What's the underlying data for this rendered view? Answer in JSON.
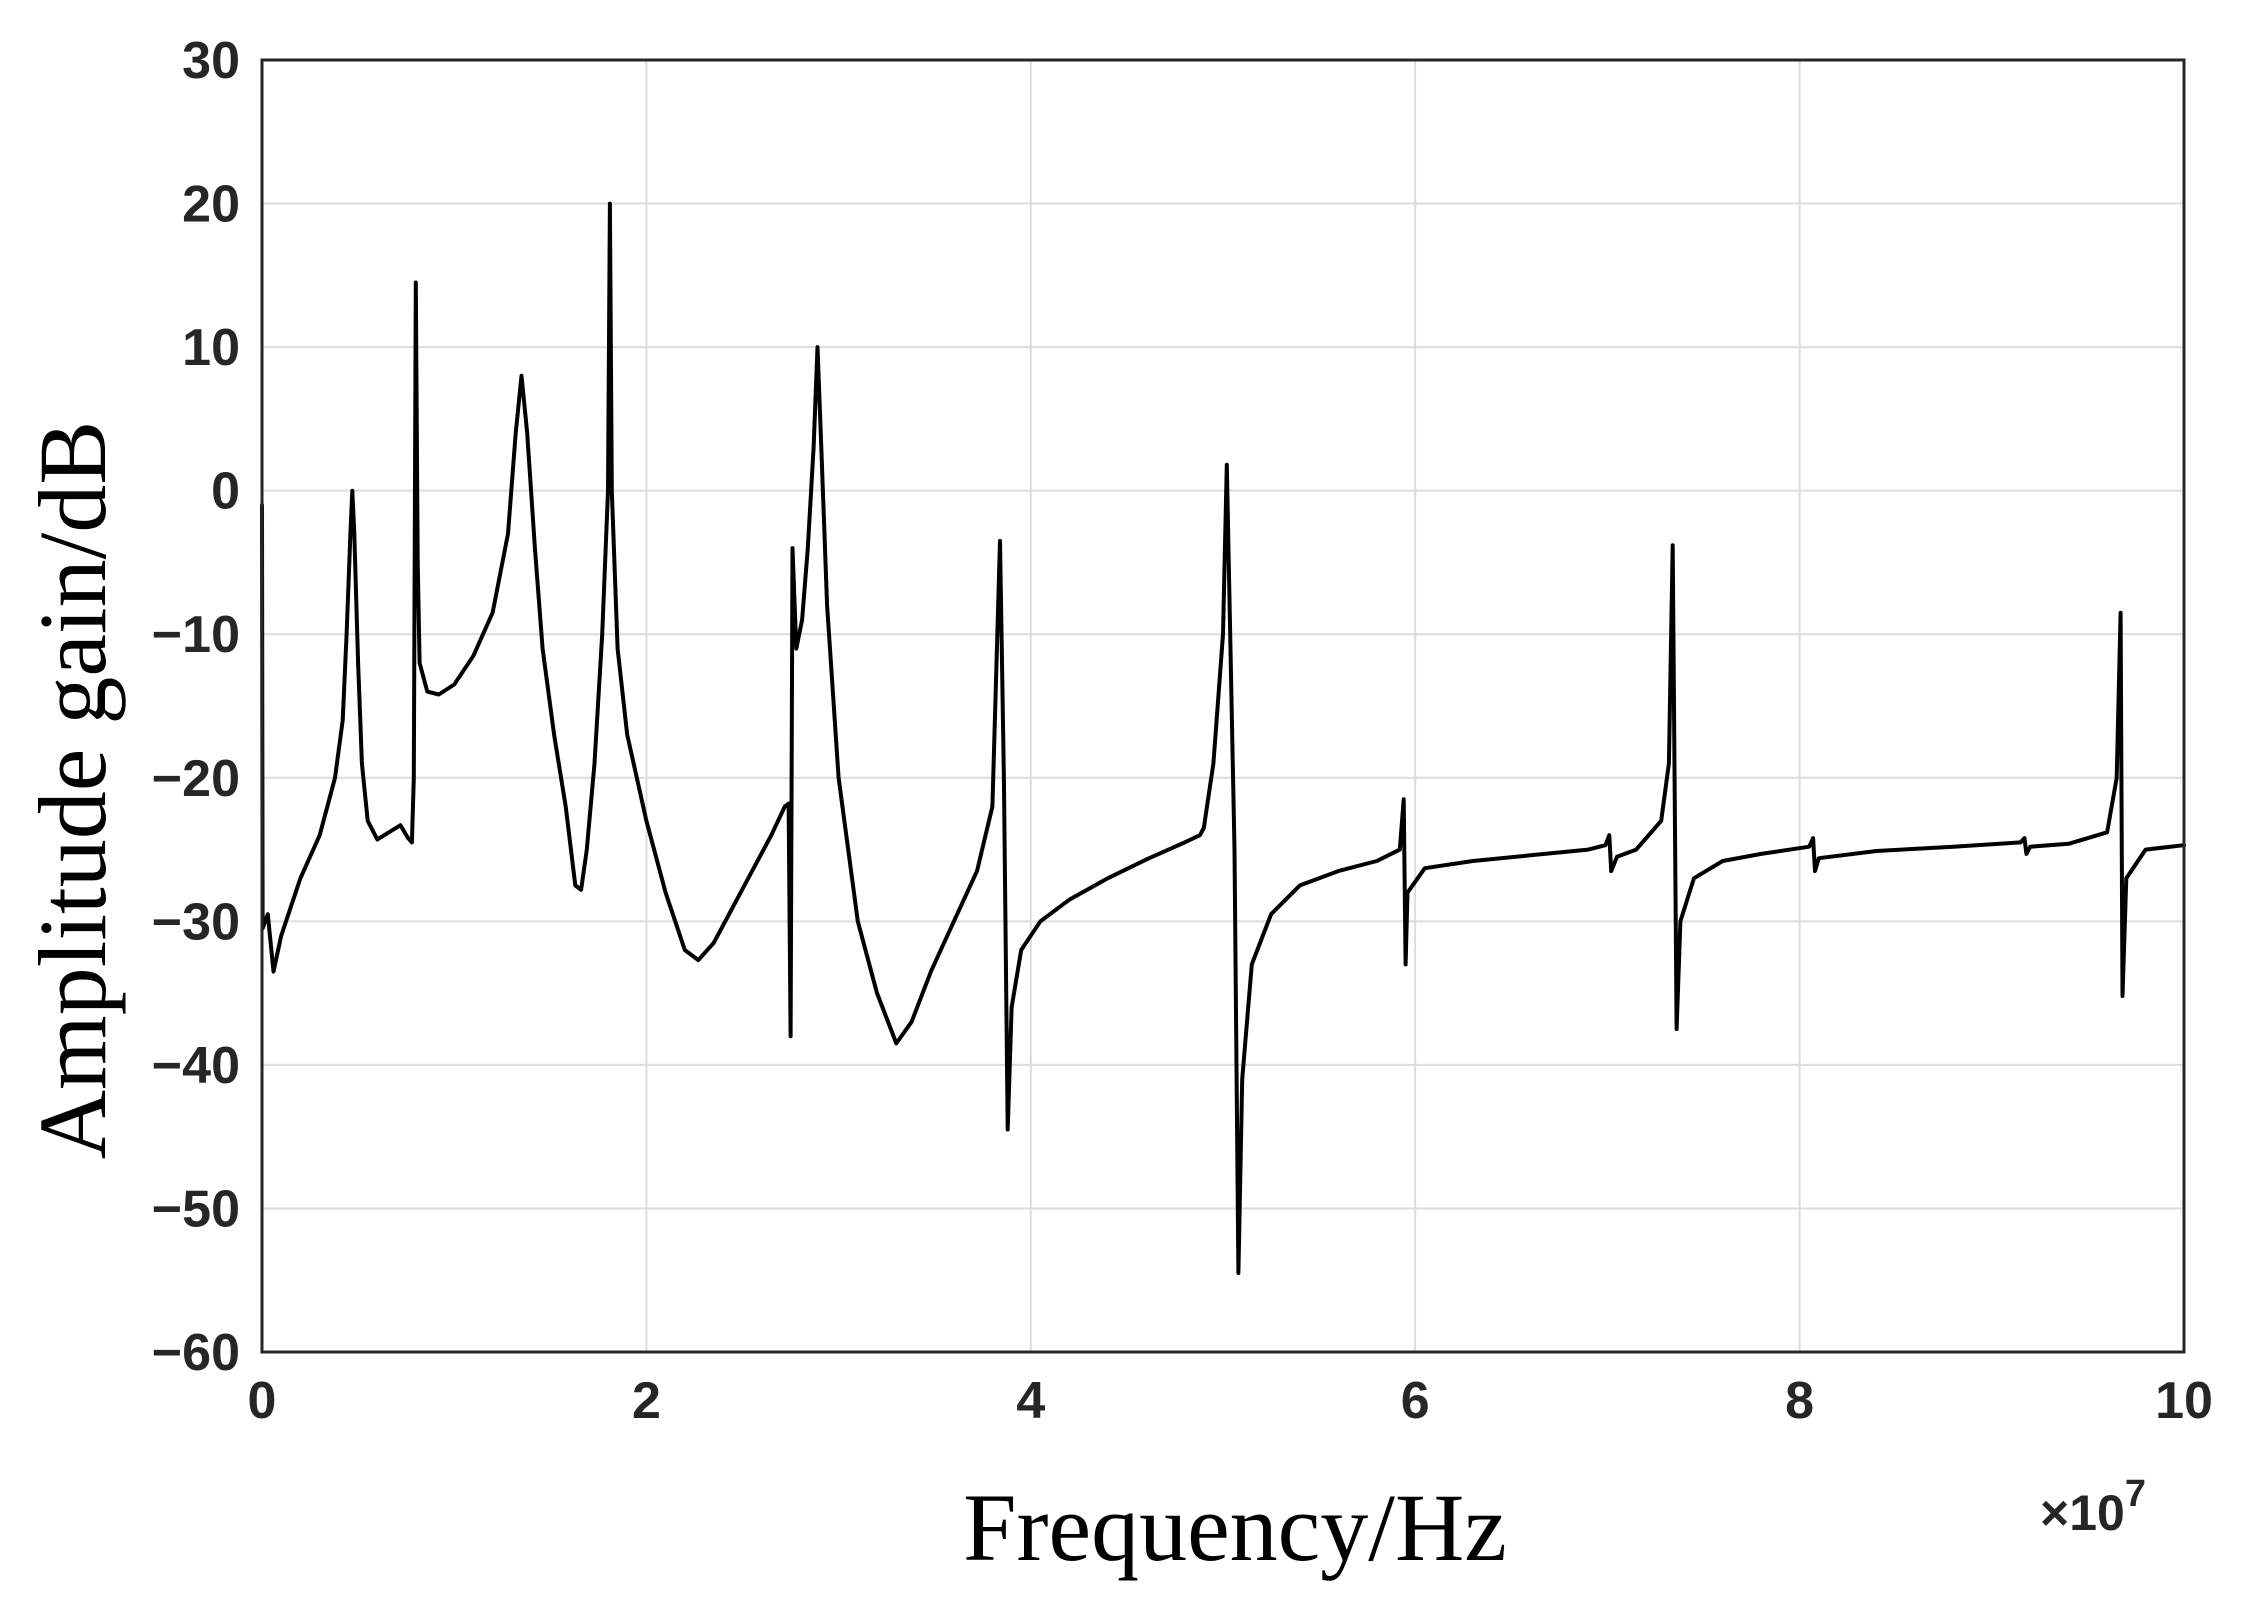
{
  "chart_data": {
    "type": "line",
    "title": "",
    "xlabel": "Frequency/Hz",
    "ylabel": "Amplitude gain/dB",
    "x_exponent_label": "×10",
    "x_exponent_power": "7",
    "xlim": [
      0,
      10
    ],
    "ylim": [
      -60,
      30
    ],
    "grid": true,
    "x_ticks": [
      0,
      2,
      4,
      6,
      8,
      10
    ],
    "x_tick_labels": [
      "0",
      "2",
      "4",
      "6",
      "8",
      "10"
    ],
    "y_ticks": [
      30,
      20,
      10,
      0,
      -10,
      -20,
      -30,
      -40,
      -50,
      -60
    ],
    "y_tick_labels": [
      "30",
      "20",
      "10",
      "0",
      "−10",
      "−20",
      "−30",
      "−40",
      "−50",
      "−60"
    ],
    "series": [
      {
        "color": "#000000",
        "points": [
          [
            0.0,
            -1
          ],
          [
            0.003,
            -30.5
          ],
          [
            0.03,
            -29.5
          ],
          [
            0.06,
            -33.5
          ],
          [
            0.1,
            -31
          ],
          [
            0.2,
            -27
          ],
          [
            0.3,
            -24
          ],
          [
            0.38,
            -20
          ],
          [
            0.42,
            -16
          ],
          [
            0.44,
            -10
          ],
          [
            0.46,
            -3
          ],
          [
            0.47,
            0
          ],
          [
            0.48,
            -3
          ],
          [
            0.5,
            -12
          ],
          [
            0.52,
            -19
          ],
          [
            0.55,
            -23
          ],
          [
            0.6,
            -24.3
          ],
          [
            0.66,
            -23.8
          ],
          [
            0.72,
            -23.3
          ],
          [
            0.76,
            -24.2
          ],
          [
            0.78,
            -24.5
          ],
          [
            0.79,
            -20
          ],
          [
            0.8,
            14.5
          ],
          [
            0.81,
            -5
          ],
          [
            0.82,
            -12
          ],
          [
            0.86,
            -14
          ],
          [
            0.92,
            -14.2
          ],
          [
            1.0,
            -13.5
          ],
          [
            1.1,
            -11.5
          ],
          [
            1.2,
            -8.5
          ],
          [
            1.28,
            -3
          ],
          [
            1.32,
            4
          ],
          [
            1.35,
            8
          ],
          [
            1.38,
            4
          ],
          [
            1.42,
            -4
          ],
          [
            1.46,
            -11
          ],
          [
            1.52,
            -17
          ],
          [
            1.58,
            -22
          ],
          [
            1.63,
            -27.5
          ],
          [
            1.66,
            -27.8
          ],
          [
            1.69,
            -25
          ],
          [
            1.73,
            -19
          ],
          [
            1.77,
            -10
          ],
          [
            1.8,
            0
          ],
          [
            1.81,
            20
          ],
          [
            1.82,
            0
          ],
          [
            1.85,
            -11
          ],
          [
            1.9,
            -17
          ],
          [
            2.0,
            -23
          ],
          [
            2.1,
            -28
          ],
          [
            2.2,
            -32
          ],
          [
            2.27,
            -32.7
          ],
          [
            2.35,
            -31.5
          ],
          [
            2.45,
            -29
          ],
          [
            2.55,
            -26.5
          ],
          [
            2.65,
            -24
          ],
          [
            2.72,
            -22
          ],
          [
            2.74,
            -21.8
          ],
          [
            2.75,
            -38
          ],
          [
            2.76,
            -4
          ],
          [
            2.78,
            -11
          ],
          [
            2.81,
            -9
          ],
          [
            2.84,
            -4
          ],
          [
            2.87,
            3
          ],
          [
            2.89,
            10
          ],
          [
            2.91,
            3
          ],
          [
            2.94,
            -8
          ],
          [
            3.0,
            -20
          ],
          [
            3.1,
            -30
          ],
          [
            3.2,
            -35
          ],
          [
            3.3,
            -38.5
          ],
          [
            3.38,
            -37
          ],
          [
            3.48,
            -33.5
          ],
          [
            3.6,
            -30
          ],
          [
            3.72,
            -26.5
          ],
          [
            3.8,
            -22
          ],
          [
            3.84,
            -3.5
          ],
          [
            3.86,
            -20
          ],
          [
            3.88,
            -44.5
          ],
          [
            3.9,
            -36
          ],
          [
            3.95,
            -32
          ],
          [
            4.05,
            -30
          ],
          [
            4.2,
            -28.5
          ],
          [
            4.4,
            -27
          ],
          [
            4.6,
            -25.7
          ],
          [
            4.8,
            -24.5
          ],
          [
            4.88,
            -24
          ],
          [
            4.9,
            -23.5
          ],
          [
            4.95,
            -19
          ],
          [
            5.0,
            -10
          ],
          [
            5.02,
            1.8
          ],
          [
            5.06,
            -25
          ],
          [
            5.08,
            -54.5
          ],
          [
            5.1,
            -41
          ],
          [
            5.15,
            -33
          ],
          [
            5.25,
            -29.5
          ],
          [
            5.4,
            -27.5
          ],
          [
            5.6,
            -26.5
          ],
          [
            5.8,
            -25.8
          ],
          [
            5.92,
            -25
          ],
          [
            5.94,
            -21.5
          ],
          [
            5.95,
            -33
          ],
          [
            5.96,
            -28
          ],
          [
            6.05,
            -26.3
          ],
          [
            6.3,
            -25.8
          ],
          [
            6.6,
            -25.4
          ],
          [
            6.9,
            -25
          ],
          [
            6.99,
            -24.7
          ],
          [
            7.01,
            -24
          ],
          [
            7.02,
            -26.5
          ],
          [
            7.05,
            -25.5
          ],
          [
            7.15,
            -25
          ],
          [
            7.28,
            -23
          ],
          [
            7.32,
            -19
          ],
          [
            7.34,
            -3.8
          ],
          [
            7.36,
            -37.5
          ],
          [
            7.38,
            -30
          ],
          [
            7.45,
            -27
          ],
          [
            7.6,
            -25.8
          ],
          [
            7.8,
            -25.3
          ],
          [
            8.05,
            -24.8
          ],
          [
            8.07,
            -24.2
          ],
          [
            8.08,
            -26.5
          ],
          [
            8.1,
            -25.6
          ],
          [
            8.4,
            -25.1
          ],
          [
            8.8,
            -24.8
          ],
          [
            9.15,
            -24.5
          ],
          [
            9.17,
            -24.2
          ],
          [
            9.18,
            -25.3
          ],
          [
            9.2,
            -24.8
          ],
          [
            9.4,
            -24.6
          ],
          [
            9.6,
            -23.8
          ],
          [
            9.65,
            -20
          ],
          [
            9.67,
            -8.5
          ],
          [
            9.68,
            -35.2
          ],
          [
            9.7,
            -27
          ],
          [
            9.8,
            -25
          ],
          [
            10.0,
            -24.7
          ]
        ]
      }
    ]
  }
}
